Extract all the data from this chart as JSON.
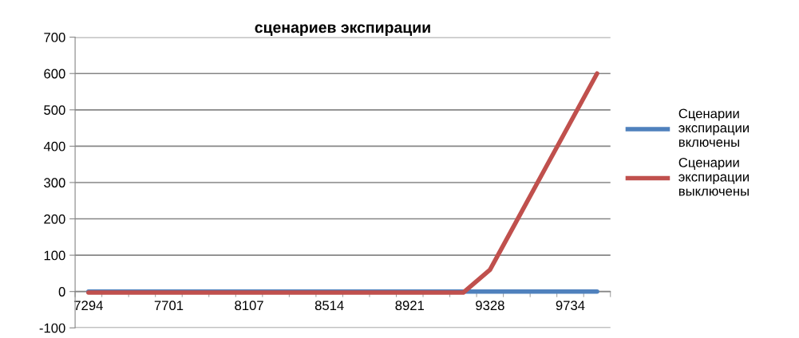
{
  "chart_data": {
    "type": "line",
    "title": "сценариев экспирации",
    "categories": [
      "7294",
      null,
      null,
      "7701",
      null,
      null,
      "8107",
      null,
      null,
      "8514",
      null,
      null,
      "8921",
      null,
      null,
      "9328",
      null,
      null,
      "9734",
      null
    ],
    "series": [
      {
        "name": "Сценарии экспирации включены",
        "color": "#4f81bd",
        "values": [
          0,
          0,
          0,
          0,
          0,
          0,
          0,
          0,
          0,
          0,
          0,
          0,
          0,
          0,
          0,
          0,
          0,
          0,
          0,
          0
        ]
      },
      {
        "name": "Сценарии экспирации выключены",
        "color": "#c0504d",
        "values": [
          -3,
          -3,
          -3,
          -3,
          -3,
          -3,
          -3,
          -3,
          -3,
          -3,
          -3,
          -3,
          -3,
          -3,
          -3,
          60,
          195,
          330,
          465,
          600
        ]
      }
    ],
    "ylim": [
      -100,
      700
    ],
    "yticks": [
      -100,
      0,
      100,
      200,
      300,
      400,
      500,
      600,
      700
    ],
    "grid": "y",
    "legend": "right",
    "marker": "none",
    "line_style": "solid"
  }
}
